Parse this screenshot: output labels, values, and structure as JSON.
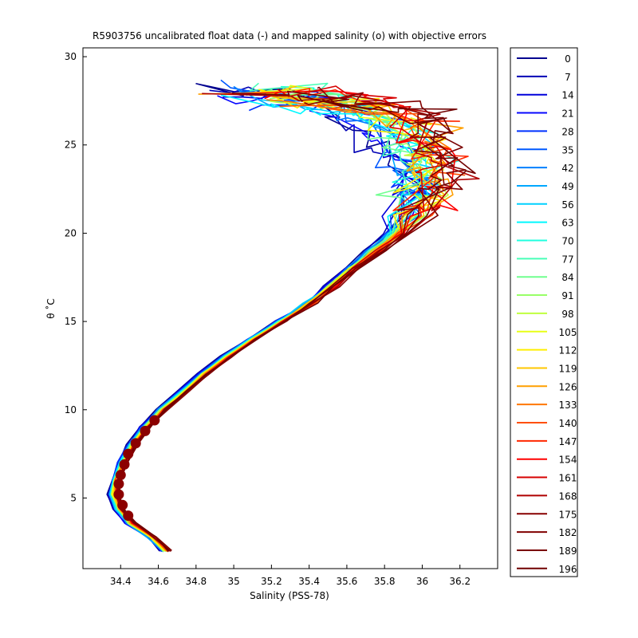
{
  "chart_data": {
    "type": "line",
    "title": "R5903756 uncalibrated float data (-) and mapped salinity (o) with objective errors",
    "xlabel": "Salinity (PSS-78)",
    "ylabel": "θ ˚C",
    "xlim": [
      34.2,
      36.4
    ],
    "ylim": [
      1,
      30.5
    ],
    "xticks": [
      34.4,
      34.6,
      34.8,
      35,
      35.2,
      35.4,
      35.6,
      35.8,
      36,
      36.2
    ],
    "xtick_labels": [
      "34.4",
      "34.6",
      "34.8",
      "35",
      "35.2",
      "35.4",
      "35.6",
      "35.8",
      "36",
      "36.2"
    ],
    "yticks": [
      5,
      10,
      15,
      20,
      25,
      30
    ],
    "ytick_labels": [
      "5",
      "10",
      "15",
      "20",
      "25",
      "30"
    ],
    "grid": false,
    "legend_position": "outside-right",
    "legend_entries": [
      "0",
      "7",
      "14",
      "21",
      "28",
      "35",
      "42",
      "49",
      "56",
      "63",
      "70",
      "77",
      "84",
      "91",
      "98",
      "105",
      "112",
      "119",
      "126",
      "133",
      "140",
      "147",
      "154",
      "161",
      "168",
      "175",
      "182",
      "189",
      "196"
    ],
    "legend_colors": [
      "#00008f",
      "#0000b5",
      "#0000db",
      "#0808ff",
      "#0030ff",
      "#0058ff",
      "#0080ff",
      "#00a8ff",
      "#00d0ff",
      "#00f8ff",
      "#20ffdf",
      "#48ffb7",
      "#70ff8f",
      "#98ff67",
      "#c0ff3f",
      "#e8ff17",
      "#ffef00",
      "#ffc700",
      "#ff9f00",
      "#ff7700",
      "#ff4f00",
      "#ff2700",
      "#ff0000",
      "#d70000",
      "#af0000",
      "#870000",
      "#800000",
      "#7a0000",
      "#700000"
    ],
    "profile_path": [
      [
        34.64,
        2.0
      ],
      [
        34.56,
        2.8
      ],
      [
        34.45,
        3.6
      ],
      [
        34.39,
        4.4
      ],
      [
        34.36,
        5.2
      ],
      [
        34.37,
        6.0
      ],
      [
        34.41,
        7.0
      ],
      [
        34.46,
        8.0
      ],
      [
        34.53,
        9.0
      ],
      [
        34.62,
        10.0
      ],
      [
        34.73,
        11.0
      ],
      [
        34.84,
        12.0
      ],
      [
        34.96,
        13.0
      ],
      [
        35.1,
        14.0
      ],
      [
        35.25,
        15.0
      ],
      [
        35.4,
        16.0
      ],
      [
        35.52,
        17.0
      ],
      [
        35.63,
        18.0
      ],
      [
        35.74,
        19.0
      ],
      [
        35.85,
        20.0
      ],
      [
        35.92,
        21.0
      ],
      [
        35.98,
        22.0
      ],
      [
        36.0,
        23.0
      ],
      [
        35.99,
        24.0
      ],
      [
        35.93,
        25.0
      ],
      [
        35.84,
        26.0
      ],
      [
        35.72,
        26.8
      ],
      [
        35.55,
        27.3
      ],
      [
        35.35,
        27.6
      ],
      [
        35.15,
        27.8
      ]
    ],
    "mapped_points": [
      [
        34.44,
        4.0
      ],
      [
        34.41,
        4.6
      ],
      [
        34.39,
        5.2
      ],
      [
        34.39,
        5.8
      ],
      [
        34.4,
        6.3
      ],
      [
        34.42,
        6.9
      ],
      [
        34.44,
        7.5
      ],
      [
        34.48,
        8.1
      ],
      [
        34.53,
        8.8
      ],
      [
        34.58,
        9.4
      ]
    ]
  }
}
